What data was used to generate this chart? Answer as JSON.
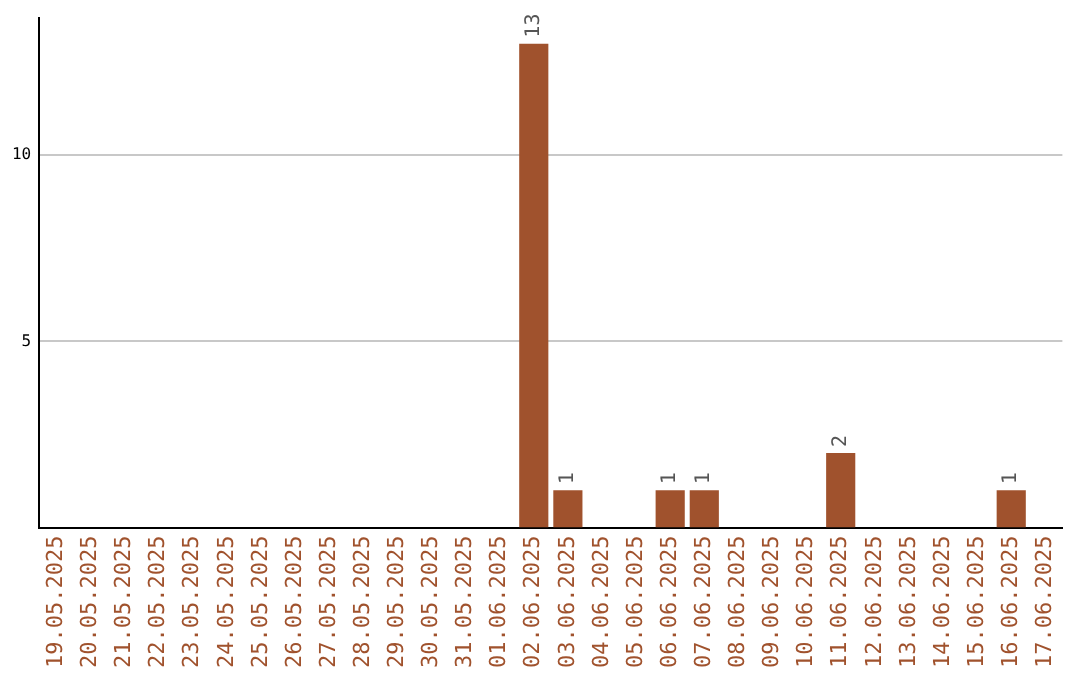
{
  "chart_data": {
    "type": "bar",
    "categories": [
      "19.05.2025",
      "20.05.2025",
      "21.05.2025",
      "22.05.2025",
      "23.05.2025",
      "24.05.2025",
      "25.05.2025",
      "26.05.2025",
      "27.05.2025",
      "28.05.2025",
      "29.05.2025",
      "30.05.2025",
      "31.05.2025",
      "01.06.2025",
      "02.06.2025",
      "03.06.2025",
      "04.06.2025",
      "05.06.2025",
      "06.06.2025",
      "07.06.2025",
      "08.06.2025",
      "09.06.2025",
      "10.06.2025",
      "11.06.2025",
      "12.06.2025",
      "13.06.2025",
      "14.06.2025",
      "15.06.2025",
      "16.06.2025",
      "17.06.2025"
    ],
    "values": [
      0,
      0,
      0,
      0,
      0,
      0,
      0,
      0,
      0,
      0,
      0,
      0,
      0,
      0,
      13,
      1,
      0,
      0,
      1,
      1,
      0,
      0,
      0,
      2,
      0,
      0,
      0,
      0,
      1,
      0
    ],
    "value_labels": [
      null,
      null,
      null,
      null,
      null,
      null,
      null,
      null,
      null,
      null,
      null,
      null,
      null,
      null,
      "13",
      "1",
      null,
      null,
      "1",
      "1",
      null,
      null,
      null,
      "2",
      null,
      null,
      null,
      null,
      "1",
      null
    ],
    "color": "#a0522d",
    "ylim": [
      0,
      13.7
    ],
    "yticks": [
      5,
      10
    ],
    "grid": "y"
  }
}
